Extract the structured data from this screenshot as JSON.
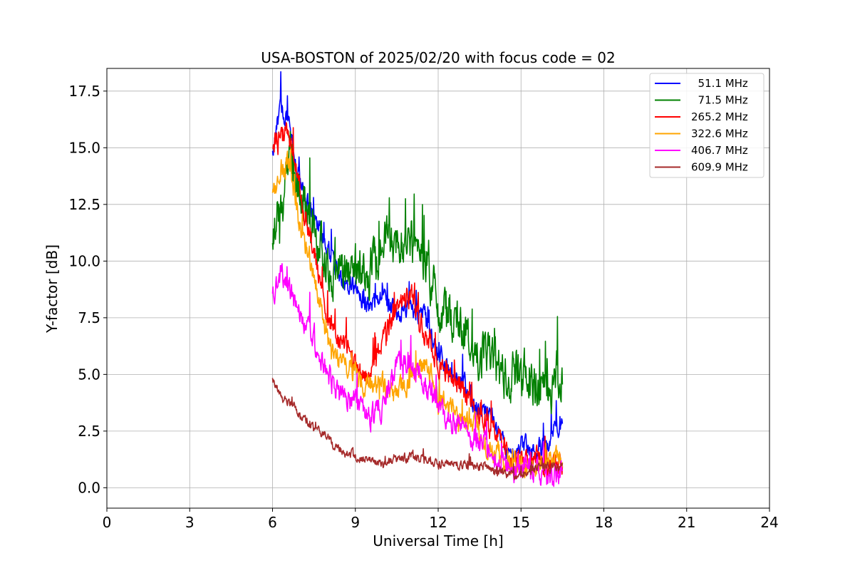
{
  "chart_data": {
    "type": "line",
    "title": "USA-BOSTON of 2025/02/20 with focus code = 02",
    "xlabel": "Universal Time [h]",
    "ylabel": "Y-factor [dB]",
    "xlim": [
      0,
      24
    ],
    "ylim": [
      -0.9,
      18.5
    ],
    "x_ticks": [
      0,
      3,
      6,
      9,
      12,
      15,
      18,
      21,
      24
    ],
    "y_ticks": [
      0.0,
      2.5,
      5.0,
      7.5,
      10.0,
      12.5,
      15.0,
      17.5
    ],
    "x_tick_labels": [
      "0",
      "3",
      "6",
      "9",
      "12",
      "15",
      "18",
      "21",
      "24"
    ],
    "y_tick_labels": [
      "0.0",
      "2.5",
      "5.0",
      "7.5",
      "10.0",
      "12.5",
      "15.0",
      "17.5"
    ],
    "grid": true,
    "legend_position": "top-right",
    "series": [
      {
        "name": "  51.1 MHz",
        "color": "#0000ff",
        "noise": 0.7,
        "x": [
          6.0,
          6.3,
          6.6,
          7.0,
          7.5,
          8.0,
          8.5,
          9.0,
          9.5,
          10.0,
          10.5,
          11.0,
          11.5,
          12.0,
          12.5,
          13.0,
          13.5,
          14.0,
          14.5,
          15.0,
          15.5,
          16.0,
          16.5
        ],
        "values": [
          15.0,
          16.8,
          16.0,
          13.5,
          12.0,
          10.5,
          9.0,
          8.8,
          8.0,
          8.5,
          7.5,
          8.0,
          7.5,
          6.0,
          5.0,
          4.5,
          3.5,
          3.0,
          1.5,
          2.0,
          1.5,
          2.0,
          3.0
        ]
      },
      {
        "name": "  71.5 MHz",
        "color": "#008000",
        "noise": 1.6,
        "x": [
          6.0,
          6.3,
          6.6,
          7.0,
          7.5,
          8.0,
          8.5,
          9.0,
          9.5,
          10.0,
          10.5,
          11.0,
          11.5,
          12.0,
          12.5,
          13.0,
          13.5,
          14.0,
          14.5,
          15.0,
          15.5,
          16.0,
          16.5
        ],
        "values": [
          11.0,
          12.5,
          14.5,
          13.0,
          11.5,
          9.5,
          9.5,
          10.0,
          9.5,
          11.0,
          10.5,
          11.0,
          10.0,
          8.0,
          7.5,
          7.0,
          6.0,
          5.5,
          5.0,
          5.0,
          4.5,
          4.5,
          5.0
        ]
      },
      {
        "name": "265.2 MHz",
        "color": "#ff0000",
        "noise": 0.8,
        "x": [
          6.0,
          6.3,
          6.6,
          7.0,
          7.5,
          8.0,
          8.5,
          9.0,
          9.5,
          10.0,
          10.5,
          11.0,
          11.5,
          12.0,
          12.5,
          13.0,
          13.5,
          14.0,
          14.5,
          15.0,
          15.5,
          16.0,
          16.5
        ],
        "values": [
          15.0,
          15.8,
          15.5,
          13.0,
          10.5,
          7.5,
          6.5,
          5.5,
          5.0,
          6.5,
          8.0,
          8.5,
          7.0,
          5.5,
          5.0,
          4.0,
          3.0,
          2.5,
          1.5,
          1.0,
          1.5,
          1.0,
          1.0
        ]
      },
      {
        "name": "322.6 MHz",
        "color": "#ffa500",
        "noise": 0.8,
        "x": [
          6.0,
          6.3,
          6.6,
          7.0,
          7.5,
          8.0,
          8.5,
          9.0,
          9.5,
          10.0,
          10.5,
          11.0,
          11.5,
          12.0,
          12.5,
          13.0,
          13.5,
          14.0,
          14.5,
          15.0,
          15.5,
          16.0,
          16.5
        ],
        "values": [
          13.0,
          14.0,
          14.5,
          11.5,
          9.5,
          6.5,
          5.5,
          5.0,
          4.5,
          4.5,
          4.0,
          5.0,
          5.5,
          4.0,
          3.5,
          3.0,
          2.5,
          1.5,
          1.2,
          1.0,
          1.0,
          1.2,
          1.5
        ]
      },
      {
        "name": "406.7 MHz",
        "color": "#ff00ff",
        "noise": 0.8,
        "x": [
          6.0,
          6.3,
          6.6,
          7.0,
          7.5,
          8.0,
          8.5,
          9.0,
          9.5,
          10.0,
          10.5,
          11.0,
          11.5,
          12.0,
          12.5,
          13.0,
          13.5,
          14.0,
          14.5,
          15.0,
          15.5,
          16.0,
          16.5
        ],
        "values": [
          8.5,
          9.5,
          9.0,
          7.5,
          6.5,
          5.0,
          4.0,
          3.8,
          3.0,
          3.5,
          5.5,
          5.5,
          4.5,
          3.5,
          2.8,
          2.5,
          2.0,
          1.5,
          1.0,
          0.8,
          0.8,
          0.6,
          0.6
        ]
      },
      {
        "name": "609.9 MHz",
        "color": "#a52a2a",
        "noise": 0.3,
        "x": [
          6.0,
          6.3,
          6.6,
          7.0,
          7.5,
          8.0,
          8.5,
          9.0,
          9.5,
          10.0,
          10.5,
          11.0,
          11.5,
          12.0,
          12.5,
          13.0,
          13.5,
          14.0,
          14.5,
          15.0,
          15.5,
          16.0,
          16.5
        ],
        "values": [
          4.8,
          4.0,
          3.8,
          3.2,
          2.6,
          2.2,
          1.6,
          1.4,
          1.2,
          1.0,
          1.2,
          1.4,
          1.2,
          1.0,
          1.1,
          1.0,
          1.0,
          0.8,
          0.6,
          0.5,
          0.8,
          0.9,
          1.0
        ]
      }
    ]
  }
}
